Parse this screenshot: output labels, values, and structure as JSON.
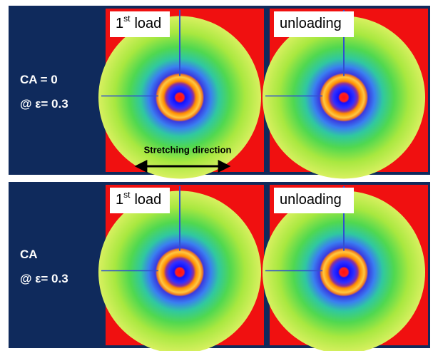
{
  "panels": [
    {
      "label": [
        "CA = 0",
        "@ ε= 0.3"
      ],
      "images": [
        {
          "tag": [
            "1",
            "st",
            "load"
          ],
          "annotation": "Stretching direction"
        },
        {
          "tag": [
            "unloading"
          ]
        }
      ]
    },
    {
      "label": [
        "CA",
        "@ ε= 0.3"
      ],
      "images": [
        {
          "tag": [
            "1",
            "st",
            "load"
          ]
        },
        {
          "tag": [
            "unloading"
          ]
        }
      ]
    }
  ]
}
